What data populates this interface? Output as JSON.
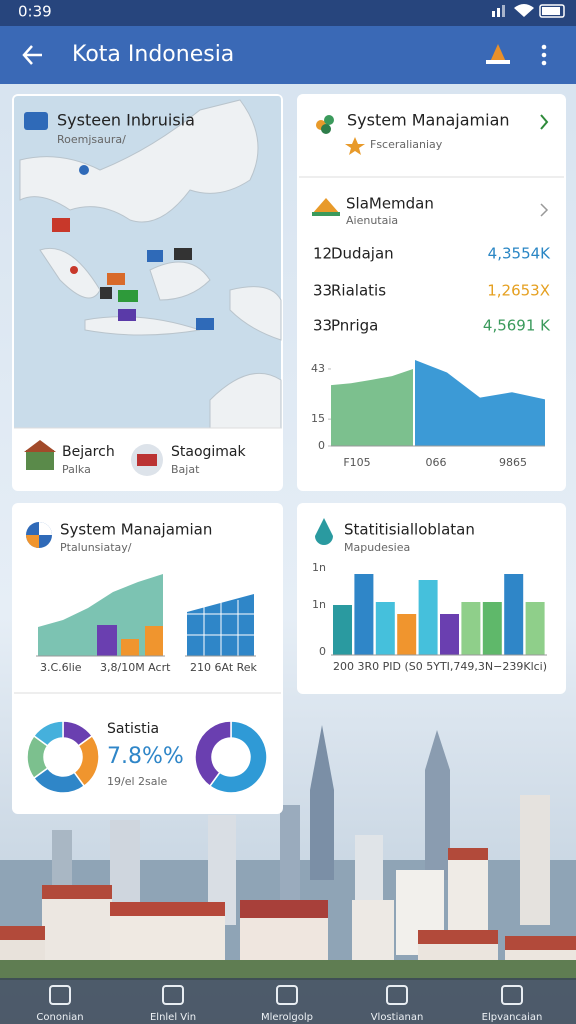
{
  "status": {
    "time": "0:39"
  },
  "appbar": {
    "title": "Kota Indonesia"
  },
  "map_card": {
    "title": "Systeen Inbruisia",
    "subtitle": "Roemjsaura/",
    "legend": [
      {
        "label": "Bejarch",
        "sub": "Palka"
      },
      {
        "label": "Staogimak",
        "sub": "Bajat"
      }
    ]
  },
  "summary_card": {
    "title": "System Manajamian",
    "subtitle": "Fsceralianiay",
    "section_title": "SlaMemdan",
    "section_subtitle": "Aienutaia",
    "rows": [
      {
        "num": "12",
        "label": "Dudajan",
        "value": "4,3554K",
        "color": "#2a86c4"
      },
      {
        "num": "33",
        "label": "Rialatis",
        "value": "1,2653X",
        "color": "#e5a021"
      },
      {
        "num": "33",
        "label": "Pnriga",
        "value": "4,5691 K",
        "color": "#3b9a5c"
      }
    ],
    "chart": {
      "ylim": [
        0,
        48
      ],
      "yticks": [
        0,
        15,
        43
      ],
      "xlabels": [
        "F105",
        "066",
        "9865"
      ],
      "series": [
        {
          "color": "#7cc08e",
          "values": [
            34,
            35,
            37,
            39,
            43
          ]
        },
        {
          "color": "#3c9ad6",
          "values": [
            48,
            41,
            27,
            30,
            26
          ]
        }
      ]
    }
  },
  "trend_card": {
    "title": "System Manajamian",
    "subtitle": "Ptalunsiatay/",
    "labels": [
      "3.C.6lie",
      "3,8/10M Acrt",
      "210 6At Rek"
    ],
    "area": {
      "color": "#7cc3b2",
      "values": [
        29,
        36,
        48,
        64,
        74,
        82
      ]
    },
    "bars": [
      {
        "color": "#6a3fb0",
        "value": 31
      },
      {
        "color": "#f0952e",
        "value": 17
      },
      {
        "color": "#f0952e",
        "value": 30
      }
    ],
    "area2": {
      "color": "#2f86c8",
      "values": [
        44,
        62
      ]
    },
    "stat_title": "Satistia",
    "stat_value": "7.8%%",
    "stat_sub": "19/el 2sale",
    "donut1": [
      {
        "color": "#6a3fb0",
        "value": 15
      },
      {
        "color": "#f0952e",
        "value": 25
      },
      {
        "color": "#2f86c8",
        "value": 25
      },
      {
        "color": "#7cc08e",
        "value": 20
      },
      {
        "color": "#45b0dc",
        "value": 15
      }
    ],
    "donut2": [
      {
        "color": "#2f9ad6",
        "value": 60
      },
      {
        "color": "#6a3fb0",
        "value": 40
      }
    ]
  },
  "bars_card": {
    "title": "Statitisialloblatan",
    "subtitle": "Mapudesiea",
    "axis_labels": [
      "1n",
      "1n",
      "0"
    ],
    "footer": "200 3R0 PID (S0 5YTI,749,3N−239Klci)",
    "bars": [
      {
        "color": "#2a9aa0",
        "value": 50
      },
      {
        "color": "#2f86c8",
        "value": 81
      },
      {
        "color": "#45c0dc",
        "value": 53
      },
      {
        "color": "#f0952e",
        "value": 41
      },
      {
        "color": "#45c0dc",
        "value": 75
      },
      {
        "color": "#6a3fb0",
        "value": 41
      },
      {
        "color": "#8fcf8a",
        "value": 53
      },
      {
        "color": "#5fb86a",
        "value": 53
      },
      {
        "color": "#2f86c8",
        "value": 81
      },
      {
        "color": "#8fcf8a",
        "value": 53
      }
    ]
  },
  "nav": [
    "Cononian",
    "Elnlel Vin",
    "Mlerolgolp",
    "Vlostianan",
    "Elpvancaian"
  ]
}
